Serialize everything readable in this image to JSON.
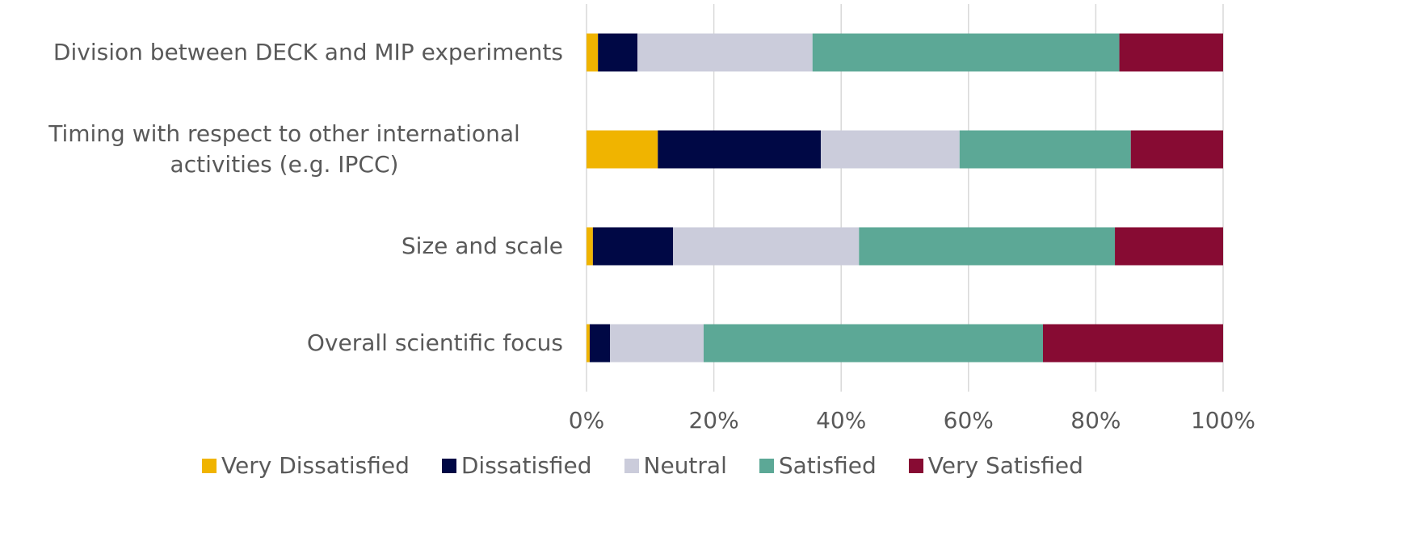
{
  "chart_data": {
    "type": "stacked-bar-horizontal",
    "categories": [
      "Division between DECK and MIP experiments",
      "Timing with respect to other international activities (e.g. IPCC)",
      "Size and scale",
      "Overall scientific focus"
    ],
    "series": [
      {
        "name": "Very Dissatisfied",
        "color": "#f0b400",
        "values": [
          1.8,
          11.2,
          1.0,
          0.5
        ]
      },
      {
        "name": "Dissatisfied",
        "color": "#000845",
        "values": [
          6.2,
          25.6,
          12.6,
          3.2
        ]
      },
      {
        "name": "Neutral",
        "color": "#cbccdb",
        "values": [
          27.5,
          21.8,
          29.2,
          14.7
        ]
      },
      {
        "name": "Satisfied",
        "color": "#5ca896",
        "values": [
          48.2,
          26.9,
          40.2,
          53.3
        ]
      },
      {
        "name": "Very Satisfied",
        "color": "#870b33",
        "values": [
          16.3,
          14.5,
          17.0,
          28.3
        ]
      }
    ],
    "xlim": [
      0,
      100
    ],
    "xticks": [
      {
        "value": 0,
        "label": "0%"
      },
      {
        "value": 20,
        "label": "20%"
      },
      {
        "value": 40,
        "label": "40%"
      },
      {
        "value": 60,
        "label": "60%"
      },
      {
        "value": 80,
        "label": "80%"
      },
      {
        "value": 100,
        "label": "100%"
      }
    ],
    "grid": true,
    "legend": "bottom"
  }
}
